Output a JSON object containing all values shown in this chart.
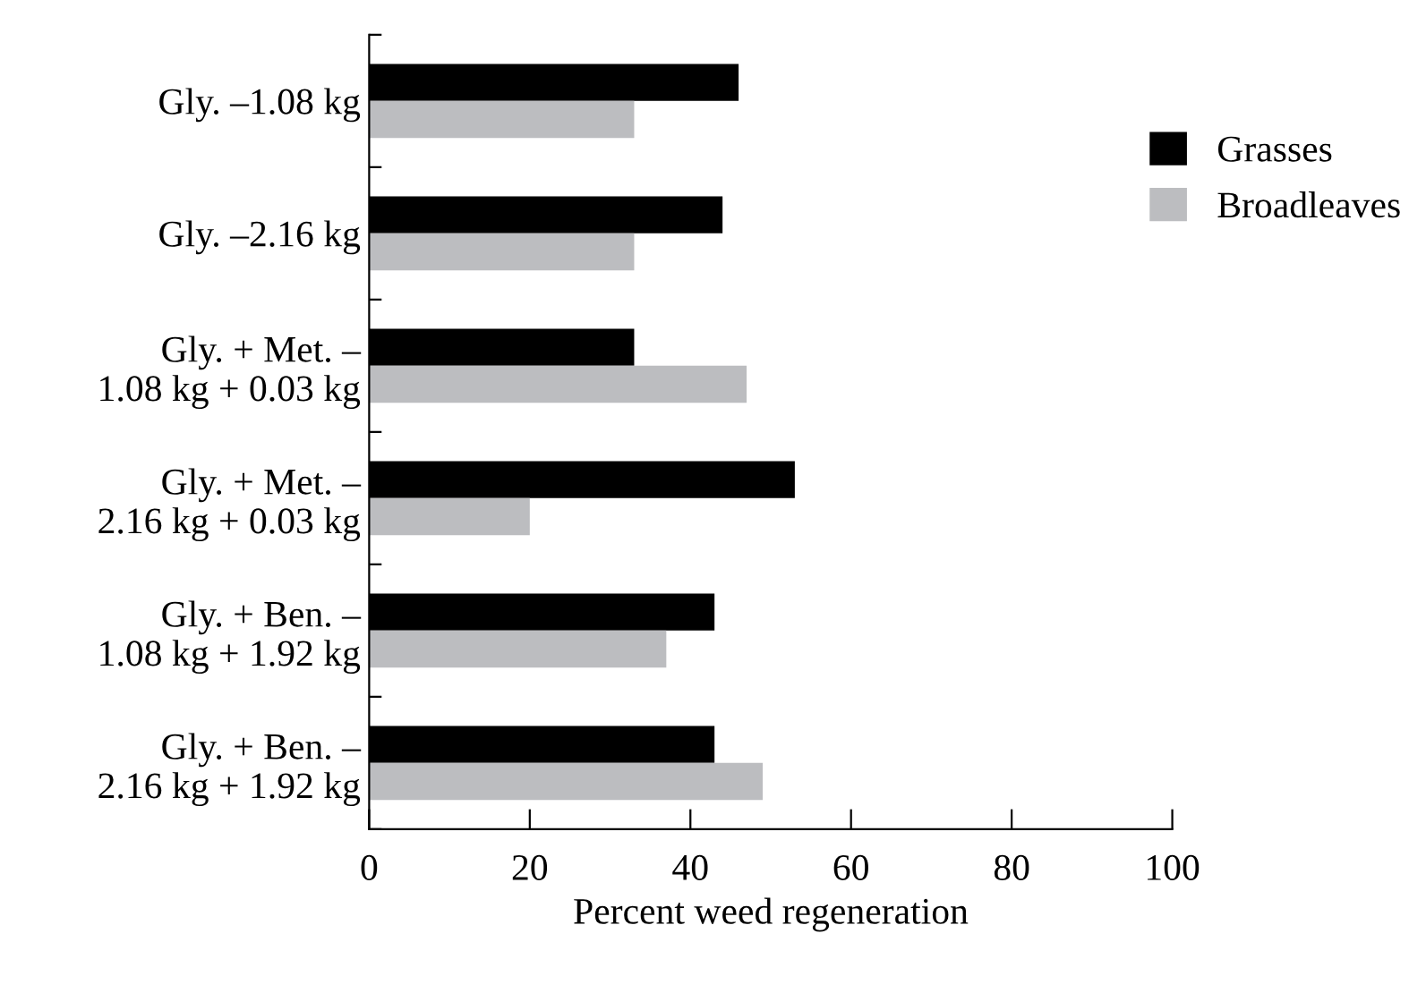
{
  "chart_data": {
    "type": "bar",
    "orientation": "horizontal",
    "xlabel": "Percent weed regeneration",
    "categories": [
      "Gly. –1.08 kg",
      "Gly. –2.16 kg",
      "Gly. + Met. –\n1.08 kg + 0.03 kg",
      "Gly. + Met. –\n2.16 kg + 0.03 kg",
      "Gly. + Ben. –\n1.08 kg + 1.92 kg",
      "Gly. + Ben. –\n2.16 kg + 1.92 kg"
    ],
    "series": [
      {
        "name": "Grasses",
        "color": "#000000",
        "values": [
          46,
          44,
          33,
          53,
          43,
          43
        ]
      },
      {
        "name": "Broadleaves",
        "color": "#bcbdc0",
        "values": [
          33,
          33,
          47,
          20,
          37,
          49
        ]
      }
    ],
    "xlim": [
      0,
      100
    ],
    "xticks": [
      0,
      20,
      40,
      60,
      80,
      100
    ],
    "legend": "top right",
    "grid": false
  }
}
